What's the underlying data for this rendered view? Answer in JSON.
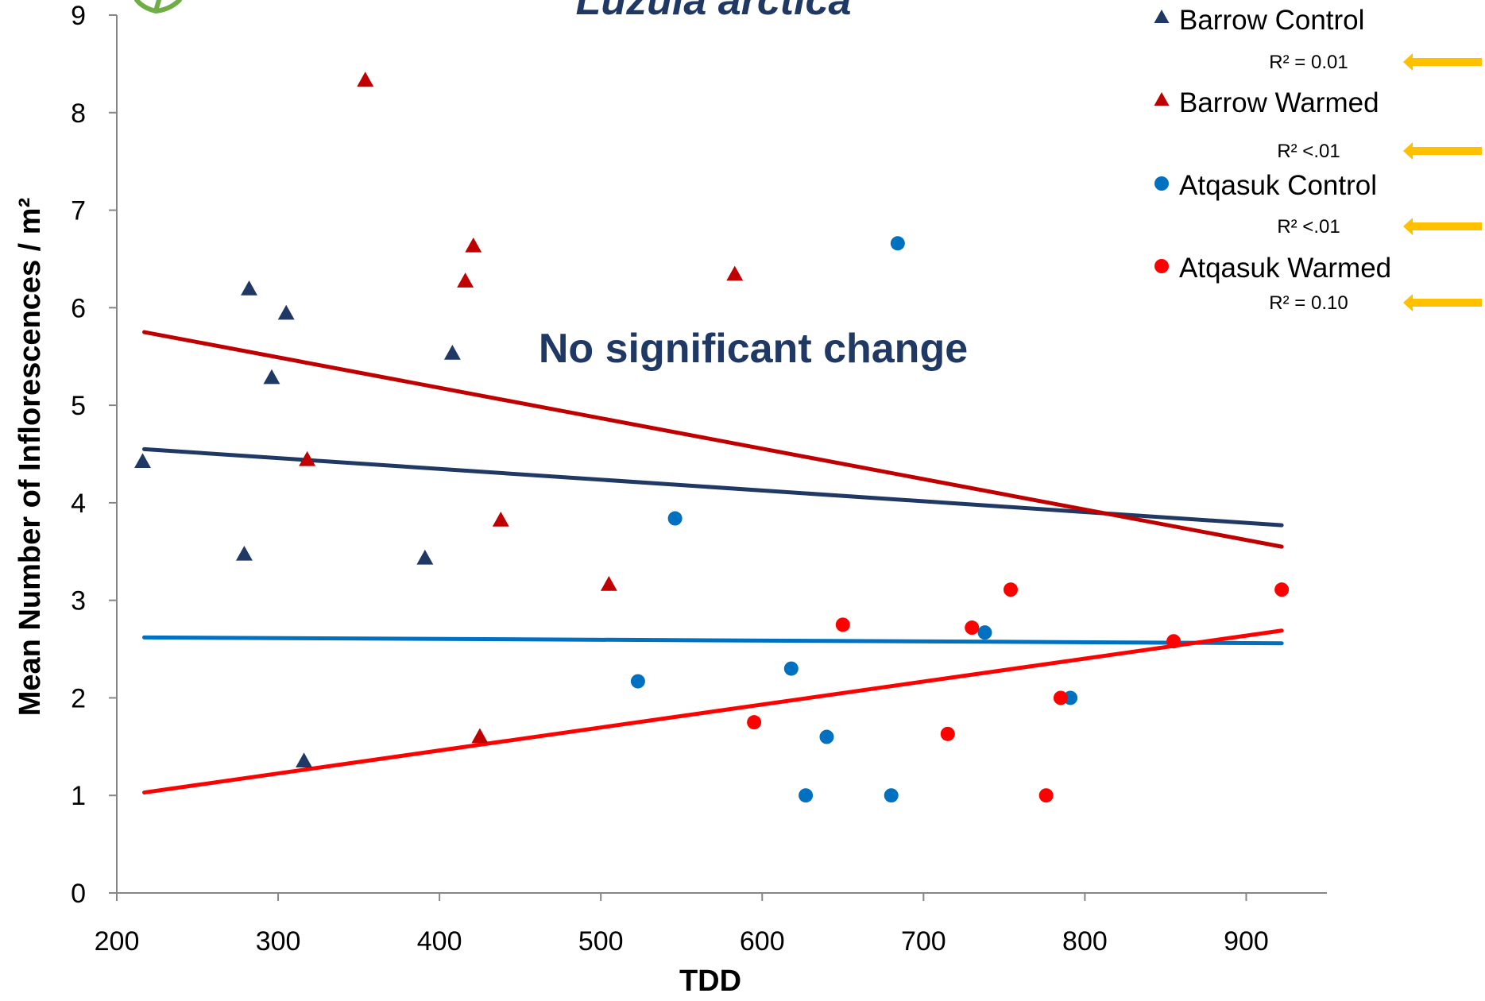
{
  "chart_data": {
    "type": "scatter",
    "title": "Luzula arctica",
    "annotation": "No significant change",
    "xlabel": "TDD",
    "ylabel": "Mean Number of Inflorescences / m²",
    "xlim": [
      200,
      950
    ],
    "ylim": [
      0,
      9
    ],
    "xticks": [
      200,
      300,
      400,
      500,
      600,
      700,
      800,
      900
    ],
    "yticks": [
      0,
      1,
      2,
      3,
      4,
      5,
      6,
      7,
      8,
      9
    ],
    "grid": false,
    "legend_position": "top-right",
    "series": [
      {
        "name": "Barrow Control",
        "marker": "triangle",
        "color": "#1f3864",
        "r2_label": "R² = 0.01",
        "trend": {
          "x": [
            217,
            922
          ],
          "y": [
            4.55,
            3.77
          ]
        },
        "points": [
          [
            216,
            4.42
          ],
          [
            279,
            3.47
          ],
          [
            282,
            6.19
          ],
          [
            296,
            5.28
          ],
          [
            305,
            5.94
          ],
          [
            316,
            1.35
          ],
          [
            391,
            3.43
          ],
          [
            408,
            5.53
          ]
        ]
      },
      {
        "name": "Barrow Warmed",
        "marker": "triangle",
        "color": "#c00000",
        "r2_label": "R² <.01",
        "trend": {
          "x": [
            217,
            922
          ],
          "y": [
            5.75,
            3.55
          ]
        },
        "points": [
          [
            318,
            4.44
          ],
          [
            354,
            8.33
          ],
          [
            416,
            6.27
          ],
          [
            421,
            6.63
          ],
          [
            425,
            1.6
          ],
          [
            438,
            3.82
          ],
          [
            505,
            3.16
          ],
          [
            583,
            6.34
          ]
        ]
      },
      {
        "name": "Atqasuk Control",
        "marker": "circle",
        "color": "#0070c0",
        "r2_label": "R² <.01",
        "trend": {
          "x": [
            217,
            922
          ],
          "y": [
            2.62,
            2.56
          ]
        },
        "points": [
          [
            523,
            2.17
          ],
          [
            546,
            3.84
          ],
          [
            618,
            2.3
          ],
          [
            627,
            1.0
          ],
          [
            640,
            1.6
          ],
          [
            680,
            1.0
          ],
          [
            684,
            6.66
          ],
          [
            738,
            2.67
          ],
          [
            791,
            2.0
          ]
        ]
      },
      {
        "name": "Atqasuk Warmed",
        "marker": "circle",
        "color": "#ff0000",
        "r2_label": "R² = 0.10",
        "trend": {
          "x": [
            217,
            922
          ],
          "y": [
            1.03,
            2.69
          ]
        },
        "points": [
          [
            595,
            1.75
          ],
          [
            650,
            2.75
          ],
          [
            715,
            1.63
          ],
          [
            730,
            2.72
          ],
          [
            754,
            3.11
          ],
          [
            776,
            1.0
          ],
          [
            785,
            2.0
          ],
          [
            855,
            2.58
          ],
          [
            922,
            3.11
          ]
        ]
      }
    ]
  },
  "colors": {
    "axis": "#868686",
    "title_text": "#1f3864",
    "arrow": "#ffc000",
    "logo_green": "#70ad47"
  }
}
